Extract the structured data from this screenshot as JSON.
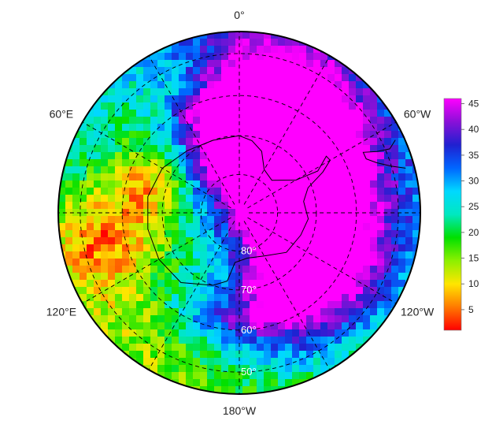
{
  "map": {
    "projection": "south-polar-stereographic",
    "longitude_labels": [
      {
        "lon": 0,
        "text": "0°"
      },
      {
        "lon": 60,
        "text": "60°E"
      },
      {
        "lon": 120,
        "text": "120°E"
      },
      {
        "lon": 180,
        "text": "180°W"
      },
      {
        "lon": -120,
        "text": "120°W"
      },
      {
        "lon": -60,
        "text": "60°W"
      }
    ],
    "latitude_circles": [
      {
        "lat": -80,
        "text": "80°"
      },
      {
        "lat": -70,
        "text": "70°"
      },
      {
        "lat": -60,
        "text": "60°"
      },
      {
        "lat": -50,
        "text": "50°"
      }
    ],
    "meridian_lines": [
      0,
      30,
      60,
      90,
      120,
      150,
      180,
      -150,
      -120,
      -90,
      -60,
      -30
    ],
    "colors": {
      "ring": "#000000",
      "graticule": "#000000",
      "coast": "#000000"
    }
  },
  "colorbar": {
    "min": 1,
    "max": 46,
    "ticks": [
      5,
      10,
      15,
      20,
      25,
      30,
      35,
      40,
      45
    ],
    "stops": [
      "#ff0000",
      "#ff7a00",
      "#ffe600",
      "#8cf000",
      "#00e000",
      "#00e8c0",
      "#00d8ff",
      "#0066ff",
      "#2020d0",
      "#8a10d8",
      "#ff00ff"
    ]
  }
}
